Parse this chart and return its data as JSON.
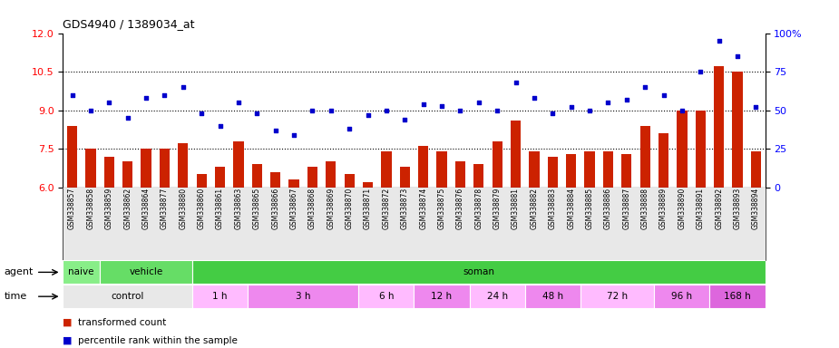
{
  "title": "GDS4940 / 1389034_at",
  "samples": [
    "GSM338857",
    "GSM338858",
    "GSM338859",
    "GSM338862",
    "GSM338864",
    "GSM338877",
    "GSM338880",
    "GSM338860",
    "GSM338861",
    "GSM338863",
    "GSM338865",
    "GSM338866",
    "GSM338867",
    "GSM338868",
    "GSM338869",
    "GSM338870",
    "GSM338871",
    "GSM338872",
    "GSM338873",
    "GSM338874",
    "GSM338875",
    "GSM338876",
    "GSM338878",
    "GSM338879",
    "GSM338881",
    "GSM338882",
    "GSM338883",
    "GSM338884",
    "GSM338885",
    "GSM338886",
    "GSM338887",
    "GSM338888",
    "GSM338889",
    "GSM338890",
    "GSM338891",
    "GSM338892",
    "GSM338893",
    "GSM338894"
  ],
  "bar_values": [
    8.4,
    7.5,
    7.2,
    7.0,
    7.5,
    7.5,
    7.7,
    6.5,
    6.8,
    7.8,
    6.9,
    6.6,
    6.3,
    6.8,
    7.0,
    6.5,
    6.2,
    7.4,
    6.8,
    7.6,
    7.4,
    7.0,
    6.9,
    7.8,
    8.6,
    7.4,
    7.2,
    7.3,
    7.4,
    7.4,
    7.3,
    8.4,
    8.1,
    9.0,
    9.0,
    10.7,
    10.5,
    7.4
  ],
  "dot_values": [
    60,
    50,
    55,
    45,
    58,
    60,
    65,
    48,
    40,
    55,
    48,
    37,
    34,
    50,
    50,
    38,
    47,
    50,
    44,
    54,
    53,
    50,
    55,
    50,
    68,
    58,
    48,
    52,
    50,
    55,
    57,
    65,
    60,
    50,
    75,
    95,
    85,
    52
  ],
  "bar_color": "#cc2200",
  "dot_color": "#0000cc",
  "ylim_left": [
    6,
    12
  ],
  "ylim_right": [
    0,
    100
  ],
  "yticks_left": [
    6,
    7.5,
    9.0,
    10.5,
    12
  ],
  "yticks_right": [
    0,
    25,
    50,
    75,
    100
  ],
  "ytick_labels_right": [
    "0",
    "25",
    "50",
    "75",
    "100%"
  ],
  "hlines": [
    7.5,
    9.0,
    10.5
  ],
  "agent_groups": [
    {
      "label": "naive",
      "start": 0,
      "end": 2,
      "color": "#88ee88"
    },
    {
      "label": "vehicle",
      "start": 2,
      "end": 7,
      "color": "#66dd66"
    },
    {
      "label": "soman",
      "start": 7,
      "end": 38,
      "color": "#44cc44"
    }
  ],
  "time_groups": [
    {
      "label": "control",
      "start": 0,
      "end": 7,
      "color": "#e8e8e8"
    },
    {
      "label": "1 h",
      "start": 7,
      "end": 10,
      "color": "#ffbbff"
    },
    {
      "label": "3 h",
      "start": 10,
      "end": 16,
      "color": "#ee88ee"
    },
    {
      "label": "6 h",
      "start": 16,
      "end": 19,
      "color": "#ffbbff"
    },
    {
      "label": "12 h",
      "start": 19,
      "end": 22,
      "color": "#ee88ee"
    },
    {
      "label": "24 h",
      "start": 22,
      "end": 25,
      "color": "#ffbbff"
    },
    {
      "label": "48 h",
      "start": 25,
      "end": 28,
      "color": "#ee88ee"
    },
    {
      "label": "72 h",
      "start": 28,
      "end": 32,
      "color": "#ffbbff"
    },
    {
      "label": "96 h",
      "start": 32,
      "end": 35,
      "color": "#ee88ee"
    },
    {
      "label": "168 h",
      "start": 35,
      "end": 38,
      "color": "#dd66dd"
    }
  ],
  "plot_bg": "#ffffff"
}
